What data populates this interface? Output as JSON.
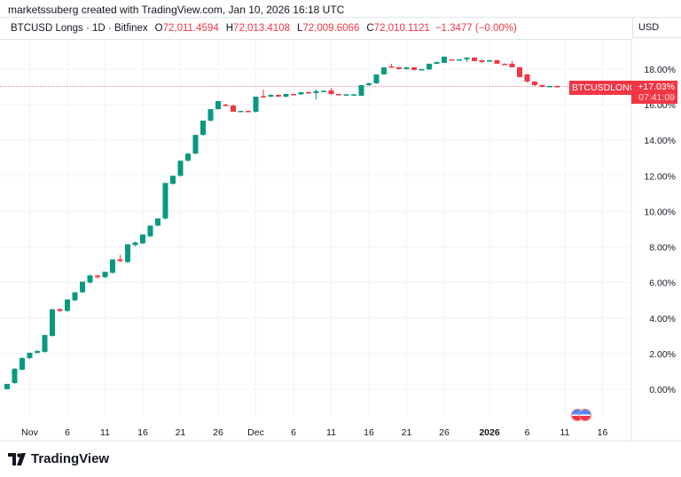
{
  "credit": "marketssuberg created with TradingView.com, Jan 10, 2026 16:18 UTC",
  "header": {
    "symbol": "BTCUSD Longs · 1D · Bitfinex",
    "o_label": "O",
    "o": "72,011.4594",
    "h_label": "H",
    "h": "72,013.4108",
    "l_label": "L",
    "l": "72,009.6066",
    "c_label": "C",
    "c": "72,010.1121",
    "change": "−1.3477 (−0.00%)"
  },
  "currency_button": "USD",
  "last_price": {
    "tag": "BTCUSDLONGS",
    "value": "+17.03%",
    "countdown": "07:41:09"
  },
  "logo": "TradingView",
  "colors": {
    "up": "#089981",
    "down": "#f23645",
    "grid": "#f0f3fa"
  },
  "chart_data": {
    "type": "candlestick",
    "ylim": [
      -1.3,
      19.4
    ],
    "y_ticks": [
      "0.00%",
      "2.00%",
      "4.00%",
      "6.00%",
      "8.00%",
      "10.00%",
      "12.00%",
      "14.00%",
      "16.00%",
      "18.00%"
    ],
    "x_ticks": [
      {
        "date": "Nov 1",
        "label": "Nov"
      },
      {
        "date": "Nov 6",
        "label": "6"
      },
      {
        "date": "Nov 11",
        "label": "11"
      },
      {
        "date": "Nov 16",
        "label": "16"
      },
      {
        "date": "Nov 21",
        "label": "21"
      },
      {
        "date": "Nov 26",
        "label": "26"
      },
      {
        "date": "Dec 1",
        "label": "Dec"
      },
      {
        "date": "Dec 6",
        "label": "6"
      },
      {
        "date": "Dec 11",
        "label": "11"
      },
      {
        "date": "Dec 16",
        "label": "16"
      },
      {
        "date": "Dec 21",
        "label": "21"
      },
      {
        "date": "Dec 26",
        "label": "26"
      },
      {
        "date": "Jan 1",
        "label": "2026"
      },
      {
        "date": "Jan 6",
        "label": "6"
      },
      {
        "date": "Jan 11",
        "label": "11"
      },
      {
        "date": "Jan 16",
        "label": "16"
      }
    ],
    "first_date": "Oct 29",
    "candles_ohlc": [
      [
        0,
        0.3,
        0,
        0.3
      ],
      [
        0.35,
        1.2,
        0.3,
        1.15
      ],
      [
        1.1,
        1.8,
        1.05,
        1.75
      ],
      [
        1.75,
        2.05,
        1.7,
        2.05
      ],
      [
        2.05,
        2.2,
        2.0,
        2.15
      ],
      [
        2.1,
        3.05,
        2.05,
        3.05
      ],
      [
        3.0,
        4.5,
        2.95,
        4.5
      ],
      [
        4.5,
        4.55,
        4.35,
        4.4
      ],
      [
        4.4,
        5.05,
        4.35,
        5.05
      ],
      [
        5.0,
        5.45,
        4.95,
        5.45
      ],
      [
        5.45,
        6.05,
        5.4,
        6.05
      ],
      [
        6.0,
        6.45,
        5.95,
        6.4
      ],
      [
        6.4,
        6.42,
        6.2,
        6.3
      ],
      [
        6.3,
        6.6,
        6.25,
        6.6
      ],
      [
        6.55,
        7.3,
        6.5,
        7.3
      ],
      [
        7.3,
        7.55,
        7.15,
        7.2
      ],
      [
        7.15,
        8.1,
        7.1,
        8.15
      ],
      [
        8.1,
        8.3,
        8.05,
        8.25
      ],
      [
        8.2,
        8.6,
        8.15,
        8.7
      ],
      [
        8.6,
        9.2,
        8.55,
        9.2
      ],
      [
        9.2,
        9.6,
        9.15,
        9.6
      ],
      [
        9.6,
        11.55,
        9.55,
        11.6
      ],
      [
        11.55,
        12.0,
        11.5,
        12.0
      ],
      [
        12.0,
        12.85,
        11.95,
        12.85
      ],
      [
        12.85,
        13.25,
        12.8,
        13.25
      ],
      [
        13.25,
        14.3,
        13.2,
        14.3
      ],
      [
        14.3,
        15.1,
        14.25,
        15.1
      ],
      [
        15.1,
        15.75,
        15.05,
        15.75
      ],
      [
        15.75,
        16.0,
        15.7,
        16.2
      ],
      [
        16.0,
        16.05,
        15.9,
        15.95
      ],
      [
        15.95,
        16.0,
        15.6,
        15.6
      ],
      [
        15.6,
        15.65,
        15.58,
        15.65
      ],
      [
        15.65,
        15.67,
        15.6,
        15.6
      ],
      [
        15.6,
        16.45,
        15.55,
        16.45
      ],
      [
        16.48,
        16.85,
        16.4,
        16.45
      ],
      [
        16.45,
        16.58,
        16.42,
        16.55
      ],
      [
        16.55,
        16.58,
        16.43,
        16.45
      ],
      [
        16.45,
        16.62,
        16.42,
        16.6
      ],
      [
        16.6,
        16.62,
        16.56,
        16.58
      ],
      [
        16.58,
        16.72,
        16.55,
        16.7
      ],
      [
        16.7,
        16.73,
        16.62,
        16.65
      ],
      [
        16.65,
        16.85,
        16.3,
        16.75
      ],
      [
        16.72,
        16.8,
        16.7,
        16.78
      ],
      [
        16.8,
        16.95,
        16.55,
        16.6
      ],
      [
        16.6,
        16.62,
        16.52,
        16.55
      ],
      [
        16.55,
        16.6,
        16.53,
        16.58
      ],
      [
        16.56,
        16.6,
        16.54,
        16.58
      ],
      [
        16.5,
        17.1,
        16.48,
        17.1
      ],
      [
        17.1,
        17.25,
        17.05,
        17.2
      ],
      [
        17.2,
        17.7,
        17.18,
        17.7
      ],
      [
        17.7,
        18.1,
        17.68,
        18.1
      ],
      [
        18.15,
        18.3,
        18.08,
        18.1
      ],
      [
        18.1,
        18.12,
        17.98,
        18.0
      ],
      [
        18.0,
        18.12,
        17.97,
        18.1
      ],
      [
        18.1,
        18.12,
        17.93,
        17.95
      ],
      [
        17.98,
        18.02,
        17.96,
        18.0
      ],
      [
        17.98,
        18.3,
        17.96,
        18.3
      ],
      [
        18.3,
        18.42,
        18.28,
        18.4
      ],
      [
        18.35,
        18.55,
        18.33,
        18.7
      ],
      [
        18.55,
        18.56,
        18.53,
        18.54
      ],
      [
        18.54,
        18.56,
        18.52,
        18.55
      ],
      [
        18.55,
        18.65,
        18.4,
        18.65
      ],
      [
        18.65,
        18.67,
        18.45,
        18.45
      ],
      [
        18.5,
        18.52,
        18.35,
        18.4
      ],
      [
        18.42,
        18.52,
        18.4,
        18.5
      ],
      [
        18.5,
        18.52,
        18.3,
        18.3
      ],
      [
        18.3,
        18.32,
        18.24,
        18.25
      ],
      [
        18.3,
        18.45,
        18.1,
        18.1
      ],
      [
        18.1,
        18.12,
        17.55,
        17.55
      ],
      [
        17.7,
        17.72,
        17.25,
        17.3
      ],
      [
        17.3,
        17.32,
        17.05,
        17.1
      ],
      [
        17.1,
        17.12,
        16.98,
        17.0
      ],
      [
        17.0,
        17.06,
        16.98,
        17.05
      ],
      [
        17.05,
        17.07,
        17.02,
        17.03
      ]
    ]
  }
}
